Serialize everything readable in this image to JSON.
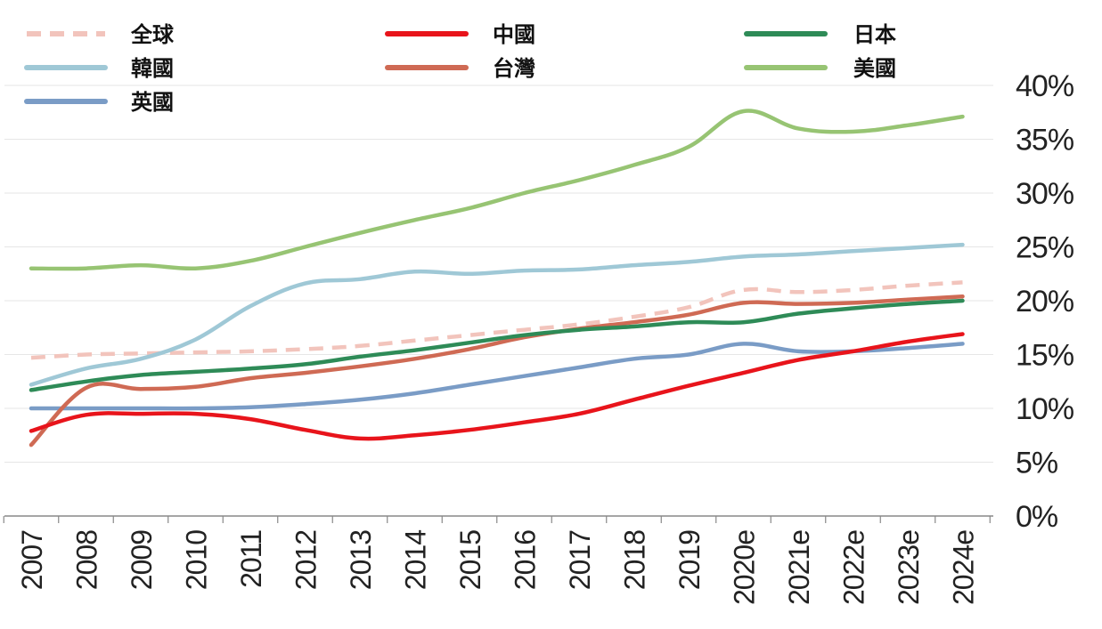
{
  "chart_data": {
    "type": "line",
    "categories": [
      "2007",
      "2008",
      "2009",
      "2010",
      "2011",
      "2012",
      "2013",
      "2014",
      "2015",
      "2016",
      "2017",
      "2018",
      "2019",
      "2020e",
      "2021e",
      "2022e",
      "2023e",
      "2024e"
    ],
    "y_ticks": [
      "0%",
      "5%",
      "10%",
      "15%",
      "20%",
      "25%",
      "30%",
      "35%",
      "40%"
    ],
    "ylim": [
      0,
      40
    ],
    "y_axis_position": "right",
    "grid": true,
    "legend_position": "top",
    "series": [
      {
        "name": "全球",
        "color": "#f2c4bc",
        "dashed": true,
        "values": [
          14.7,
          15.0,
          15.1,
          15.2,
          15.3,
          15.5,
          15.8,
          16.3,
          16.8,
          17.3,
          17.8,
          18.5,
          19.4,
          21.0,
          20.8,
          21.0,
          21.4,
          21.7
        ]
      },
      {
        "name": "韓國",
        "color": "#9fc8d6",
        "dashed": false,
        "values": [
          12.2,
          13.7,
          14.6,
          16.4,
          19.5,
          21.6,
          22.0,
          22.7,
          22.5,
          22.8,
          22.9,
          23.3,
          23.6,
          24.1,
          24.3,
          24.6,
          24.9,
          25.2
        ]
      },
      {
        "name": "英國",
        "color": "#7a9cc6",
        "dashed": false,
        "values": [
          10.0,
          10.0,
          10.0,
          10.0,
          10.1,
          10.4,
          10.8,
          11.4,
          12.2,
          13.0,
          13.8,
          14.6,
          15.0,
          16.0,
          15.3,
          15.3,
          15.6,
          16.0
        ]
      },
      {
        "name": "中國",
        "color": "#e8141b",
        "dashed": false,
        "values": [
          7.9,
          9.4,
          9.5,
          9.5,
          9.0,
          8.0,
          7.2,
          7.5,
          8.0,
          8.7,
          9.5,
          10.8,
          12.1,
          13.3,
          14.5,
          15.3,
          16.2,
          16.9
        ]
      },
      {
        "name": "台灣",
        "color": "#cf6a54",
        "dashed": false,
        "values": [
          6.6,
          11.9,
          11.8,
          12.0,
          12.8,
          13.3,
          13.9,
          14.6,
          15.5,
          16.6,
          17.4,
          18.0,
          18.7,
          19.8,
          19.7,
          19.8,
          20.1,
          20.4
        ]
      },
      {
        "name": "日本",
        "color": "#2e8b57",
        "dashed": false,
        "values": [
          11.7,
          12.5,
          13.1,
          13.4,
          13.7,
          14.1,
          14.8,
          15.4,
          16.1,
          16.8,
          17.3,
          17.6,
          18.0,
          18.0,
          18.8,
          19.3,
          19.7,
          20.0
        ]
      },
      {
        "name": "美國",
        "color": "#97c473",
        "dashed": false,
        "values": [
          23.0,
          23.0,
          23.3,
          23.0,
          23.7,
          25.0,
          26.3,
          27.5,
          28.6,
          30.0,
          31.2,
          32.6,
          34.3,
          37.6,
          36.0,
          35.7,
          36.3,
          37.1
        ]
      }
    ]
  }
}
